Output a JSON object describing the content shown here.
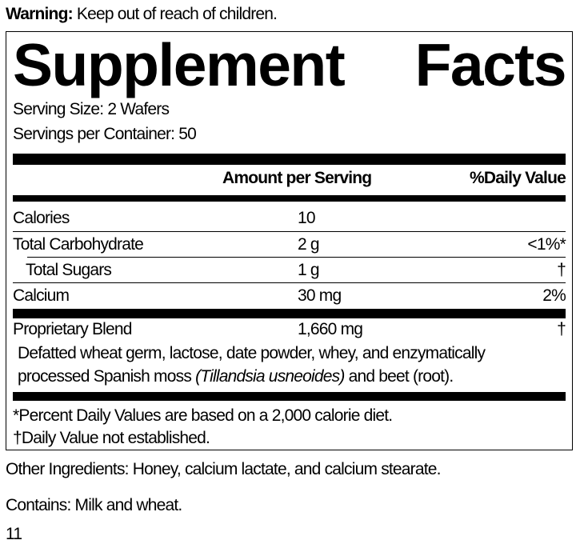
{
  "warning": {
    "label": "Warning:",
    "text": "Keep out of reach of children."
  },
  "facts": {
    "title_word1": "Supplement",
    "title_word2": "Facts",
    "serving_size": "Serving Size:  2 Wafers",
    "servings_per_container": "Servings per Container: 50",
    "header": {
      "amount": "Amount per Serving",
      "daily_value": "%Daily Value"
    },
    "rows": [
      {
        "name": "Calories",
        "amount": "10",
        "dv": ""
      },
      {
        "name": "Total Carbohydrate",
        "amount": "2 g",
        "dv": "<1%*"
      },
      {
        "name": "Total Sugars",
        "amount": "1 g",
        "dv": "†"
      },
      {
        "name": "Calcium",
        "amount": "30 mg",
        "dv": "2%"
      }
    ],
    "blend": {
      "name": "Proprietary Blend",
      "amount": "1,660 mg",
      "dv": "†",
      "line1": "Defatted wheat germ, lactose, date powder, whey, and enzymatically",
      "line2_pre": "processed Spanish moss ",
      "line2_italic": "(Tillandsia usneoides)",
      "line2_post": " and beet (root)."
    },
    "footnote1": "*Percent Daily Values are based on a 2,000 calorie diet.",
    "footnote2": "†Daily Value not established."
  },
  "other_ingredients": "Other Ingredients: Honey, calcium lactate, and calcium stearate.",
  "contains": "Contains: Milk and wheat.",
  "page_number": "11"
}
